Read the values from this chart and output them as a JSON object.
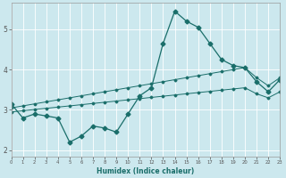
{
  "xlabel": "Humidex (Indice chaleur)",
  "background_color": "#cce8ee",
  "grid_color": "#b8d8de",
  "line_color": "#1a6e6a",
  "x_data": [
    0,
    1,
    2,
    3,
    4,
    5,
    6,
    7,
    8,
    9,
    10,
    11,
    12,
    13,
    14,
    15,
    16,
    17,
    18,
    19,
    20,
    21,
    22,
    23
  ],
  "y_main": [
    3.15,
    2.8,
    2.9,
    2.85,
    2.8,
    2.2,
    2.35,
    2.6,
    2.55,
    2.45,
    2.9,
    3.35,
    3.55,
    4.65,
    5.45,
    5.2,
    5.05,
    4.65,
    4.25,
    4.1,
    4.05,
    3.7,
    3.45,
    3.75
  ],
  "y_upper": [
    3.05,
    3.1,
    3.15,
    3.2,
    3.25,
    3.3,
    3.35,
    3.4,
    3.45,
    3.5,
    3.55,
    3.6,
    3.65,
    3.7,
    3.75,
    3.8,
    3.85,
    3.9,
    3.95,
    4.0,
    4.05,
    3.8,
    3.6,
    3.8
  ],
  "y_lower": [
    2.95,
    2.98,
    3.01,
    3.04,
    3.07,
    3.1,
    3.13,
    3.16,
    3.19,
    3.22,
    3.25,
    3.28,
    3.31,
    3.34,
    3.37,
    3.4,
    3.43,
    3.46,
    3.49,
    3.52,
    3.55,
    3.4,
    3.3,
    3.45
  ],
  "xlim": [
    0,
    23
  ],
  "ylim": [
    1.85,
    5.65
  ],
  "yticks": [
    2,
    3,
    4,
    5
  ],
  "xticks": [
    0,
    1,
    2,
    3,
    4,
    5,
    6,
    7,
    8,
    9,
    10,
    11,
    12,
    13,
    14,
    15,
    16,
    17,
    18,
    19,
    20,
    21,
    22,
    23
  ],
  "figsize": [
    3.2,
    2.0
  ],
  "dpi": 100
}
